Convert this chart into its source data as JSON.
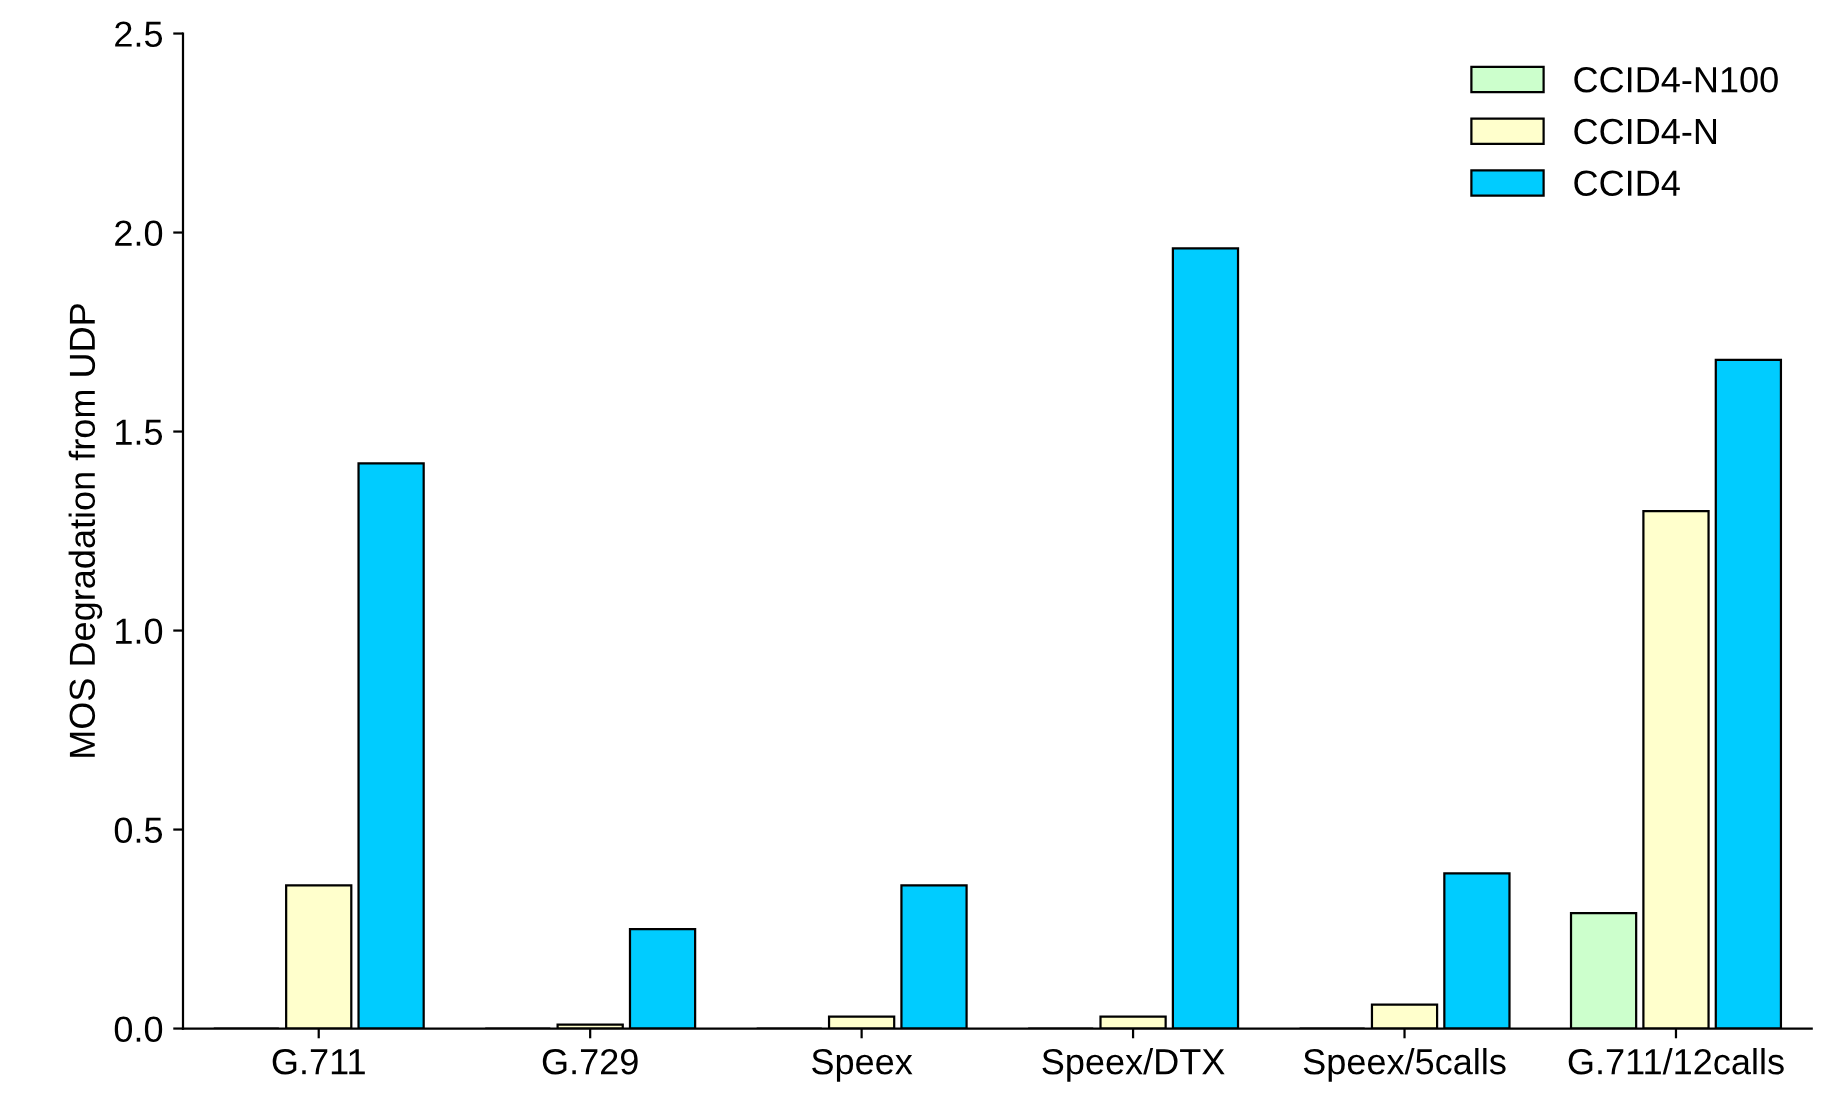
{
  "chart_data": {
    "type": "bar",
    "ylabel": "MOS Degradation from UDP",
    "categories": [
      "G.711",
      "G.729",
      "Speex",
      "Speex/DTX",
      "Speex/5calls",
      "G.711/12calls"
    ],
    "series": [
      {
        "name": "CCID4-N100",
        "color": "#ccffcc",
        "values": [
          0,
          0,
          0,
          0,
          0,
          0.29
        ]
      },
      {
        "name": "CCID4-N",
        "color": "#ffffcc",
        "values": [
          0.36,
          0.01,
          0.03,
          0.03,
          0.06,
          1.3
        ]
      },
      {
        "name": "CCID4",
        "color": "#00ccff",
        "values": [
          1.42,
          0.25,
          0.36,
          1.96,
          0.39,
          1.68
        ]
      }
    ],
    "ylim": [
      0,
      2.5
    ],
    "yticks": [
      {
        "value": 0,
        "label": "0.0"
      },
      {
        "value": 0.5,
        "label": "0.5"
      },
      {
        "value": 1,
        "label": "1.0"
      },
      {
        "value": 1.5,
        "label": "1.5"
      },
      {
        "value": 2,
        "label": "2.0"
      },
      {
        "value": 2.5,
        "label": "2.5"
      }
    ],
    "grid": false,
    "legend": "top right"
  }
}
